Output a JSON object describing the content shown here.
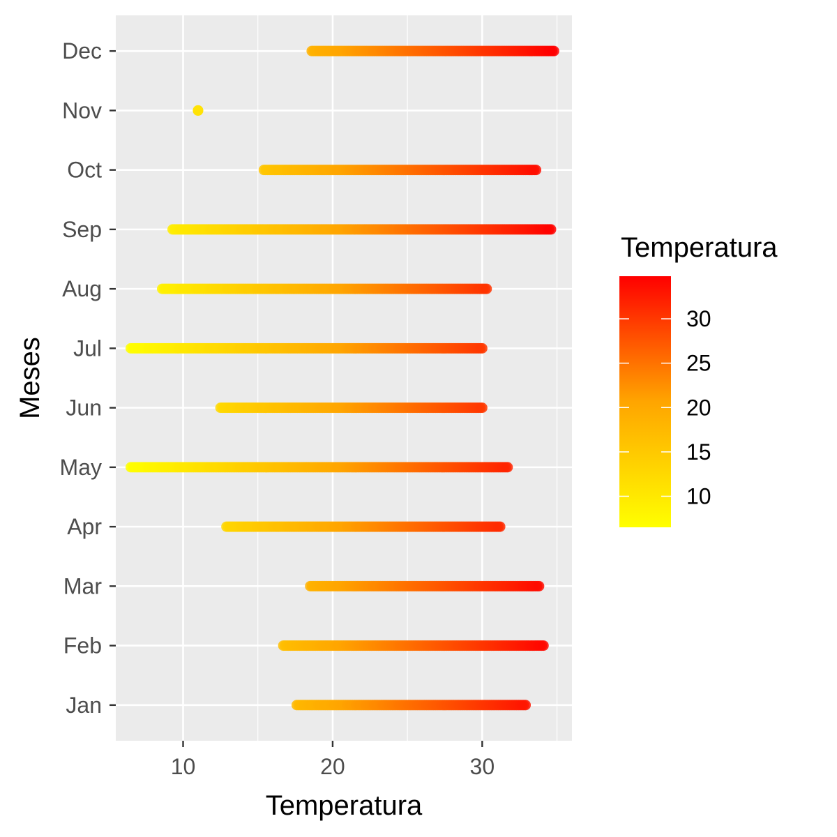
{
  "chart_data": {
    "type": "scatter",
    "xlabel": "Temperatura",
    "ylabel": "Meses",
    "xlim": [
      5.5,
      36
    ],
    "x_ticks": [
      10,
      20,
      30
    ],
    "x_minor_ticks": [
      15,
      25,
      35
    ],
    "categories": [
      "Jan",
      "Feb",
      "Mar",
      "Apr",
      "May",
      "Jun",
      "Jul",
      "Aug",
      "Sep",
      "Oct",
      "Nov",
      "Dec"
    ],
    "ranges": [
      {
        "month": "Jan",
        "min": 17.6,
        "max": 32.9
      },
      {
        "month": "Feb",
        "min": 16.7,
        "max": 34.1
      },
      {
        "month": "Mar",
        "min": 18.5,
        "max": 33.8
      },
      {
        "month": "Apr",
        "min": 12.9,
        "max": 31.2
      },
      {
        "month": "May",
        "min": 6.5,
        "max": 31.7
      },
      {
        "month": "Jun",
        "min": 12.5,
        "max": 30.0
      },
      {
        "month": "Jul",
        "min": 6.5,
        "max": 30.0
      },
      {
        "month": "Aug",
        "min": 8.6,
        "max": 30.3
      },
      {
        "month": "Sep",
        "min": 9.3,
        "max": 34.6
      },
      {
        "month": "Oct",
        "min": 15.4,
        "max": 33.6
      },
      {
        "month": "Nov",
        "min": 11.0,
        "max": 11.0
      },
      {
        "month": "Dec",
        "min": 18.6,
        "max": 34.8
      }
    ],
    "legend": {
      "title": "Temperatura",
      "position": "right",
      "range": [
        6.5,
        34.8
      ],
      "ticks": [
        10,
        15,
        20,
        25,
        30
      ],
      "low_color": "#FFFF00",
      "high_color": "#FF0000"
    },
    "panel_background": "#EBEBEB",
    "grid": true,
    "grid_color": "#FFFFFF"
  }
}
